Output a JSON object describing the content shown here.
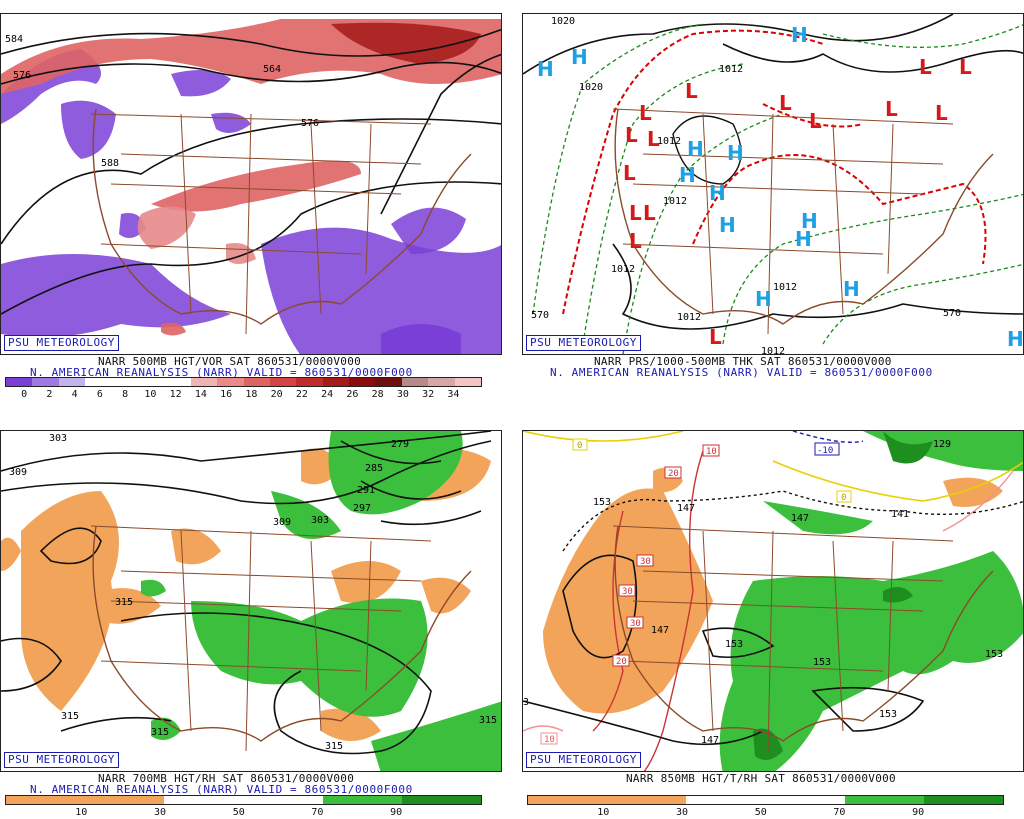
{
  "panels": [
    {
      "brand": "PSU METEOROLOGY",
      "line1": "NARR 500MB HGT/VOR SAT 860531/0000V000",
      "line2": "N. AMERICAN REANALYSIS (NARR) VALID = 860531/0000F000",
      "colorbar_labels": [
        "0",
        "2",
        "4",
        "6",
        "8",
        "10",
        "12",
        "14",
        "16",
        "18",
        "20",
        "22",
        "24",
        "26",
        "28",
        "30",
        "32",
        "34"
      ],
      "contour_labels": [
        "584",
        "576",
        "564",
        "576",
        "588"
      ]
    },
    {
      "brand": "PSU METEOROLOGY",
      "line1": "NARR PRS/1000-500MB THK SAT 860531/0000V000",
      "line2": "N. AMERICAN REANALYSIS (NARR) VALID = 860531/0000F000",
      "contour_labels": [
        "1020",
        "1020",
        "1012",
        "1012",
        "1012",
        "1012",
        "1012",
        "1012",
        "1012",
        "570",
        "570"
      ],
      "high_symbol": "H",
      "low_symbol": "L"
    },
    {
      "brand": "PSU METEOROLOGY",
      "line1": "NARR 700MB HGT/RH SAT 860531/0000V000",
      "line2": "N. AMERICAN REANALYSIS (NARR) VALID = 860531/0000F000",
      "colorbar_labels": [
        "10",
        "30",
        "50",
        "70",
        "90"
      ],
      "contour_labels": [
        "303",
        "309",
        "279",
        "285",
        "291",
        "297",
        "309",
        "303",
        "315",
        "315",
        "315",
        "315",
        "315"
      ]
    },
    {
      "brand": "PSU METEOROLOGY",
      "line1": "NARR 850MB HGT/T/RH SAT 860531/0000V000",
      "colorbar_labels": [
        "10",
        "30",
        "50",
        "70",
        "90"
      ],
      "contour_labels": [
        "153",
        "147",
        "147",
        "153",
        "153",
        "153",
        "147",
        "141",
        "129",
        "153",
        "147",
        "3"
      ],
      "temp_labels": [
        "0",
        "10",
        "-10",
        "0",
        "20",
        "30",
        "30",
        "30",
        "20",
        "10"
      ]
    }
  ],
  "colors": {
    "vort_scale": [
      "#7a3fd6",
      "#9e7be4",
      "#c3b4ee",
      "#ffffff",
      "#ffffff",
      "#ffffff",
      "#ffffff",
      "#f0b4b4",
      "#e88a8a",
      "#de6464",
      "#d44444",
      "#c02c2c",
      "#a51a1a",
      "#8a0c0c",
      "#6e1010",
      "#b48a8a",
      "#d8a6a6",
      "#f2c6c6"
    ],
    "rh_scale": [
      "#f2a55a",
      "#f2a55a",
      "#ffffff",
      "#ffffff",
      "#3cbf3c",
      "#1e8f1e"
    ],
    "borders": "#8b4a2b",
    "brand": "#1a1ab0"
  }
}
